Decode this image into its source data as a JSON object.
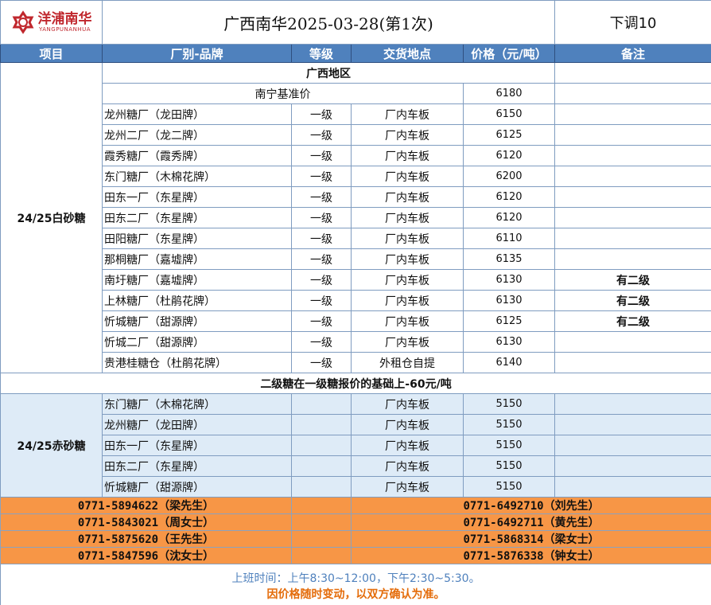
{
  "header": {
    "logo_text": "洋浦南华",
    "logo_sub": "YANGPUNANHUA",
    "title": "广西南华2025-03-28(第1次)",
    "adjustment": "下调10"
  },
  "columns": [
    "项目",
    "厂别-品牌",
    "等级",
    "交货地点",
    "价格（元/吨）",
    "备注"
  ],
  "white_sugar": {
    "label": "24/25白砂糖",
    "region": "广西地区",
    "base_label": "南宁基准价",
    "base_price": "6180",
    "rows": [
      {
        "factory": "龙州糖厂（龙田牌）",
        "grade": "一级",
        "location": "厂内车板",
        "price": "6150",
        "note": ""
      },
      {
        "factory": "龙州二厂（龙二牌）",
        "grade": "一级",
        "location": "厂内车板",
        "price": "6125",
        "note": ""
      },
      {
        "factory": "霞秀糖厂（霞秀牌）",
        "grade": "一级",
        "location": "厂内车板",
        "price": "6120",
        "note": ""
      },
      {
        "factory": "东门糖厂（木棉花牌）",
        "grade": "一级",
        "location": "厂内车板",
        "price": "6200",
        "note": ""
      },
      {
        "factory": "田东一厂（东星牌）",
        "grade": "一级",
        "location": "厂内车板",
        "price": "6120",
        "note": ""
      },
      {
        "factory": "田东二厂（东星牌）",
        "grade": "一级",
        "location": "厂内车板",
        "price": "6120",
        "note": ""
      },
      {
        "factory": "田阳糖厂（东星牌）",
        "grade": "一级",
        "location": "厂内车板",
        "price": "6110",
        "note": ""
      },
      {
        "factory": "那桐糖厂（嘉墟牌）",
        "grade": "一级",
        "location": "厂内车板",
        "price": "6135",
        "note": ""
      },
      {
        "factory": "南圩糖厂（嘉墟牌）",
        "grade": "一级",
        "location": "厂内车板",
        "price": "6130",
        "note": "有二级"
      },
      {
        "factory": "上林糖厂（杜鹃花牌）",
        "grade": "一级",
        "location": "厂内车板",
        "price": "6130",
        "note": "有二级"
      },
      {
        "factory": "忻城糖厂（甜源牌）",
        "grade": "一级",
        "location": "厂内车板",
        "price": "6125",
        "note": "有二级"
      },
      {
        "factory": "忻城二厂（甜源牌）",
        "grade": "一级",
        "location": "厂内车板",
        "price": "6130",
        "note": ""
      },
      {
        "factory": "贵港桂糖仓（杜鹃花牌）",
        "grade": "一级",
        "location": "外租仓自提",
        "price": "6140",
        "note": ""
      }
    ]
  },
  "second_grade_note": "二级糖在一级糖报价的基础上-60元/吨",
  "brown_sugar": {
    "label": "24/25赤砂糖",
    "rows": [
      {
        "factory": "东门糖厂（木棉花牌）",
        "grade": "",
        "location": "厂内车板",
        "price": "5150",
        "note": ""
      },
      {
        "factory": "龙州糖厂（龙田牌）",
        "grade": "",
        "location": "厂内车板",
        "price": "5150",
        "note": ""
      },
      {
        "factory": "田东一厂（东星牌）",
        "grade": "",
        "location": "厂内车板",
        "price": "5150",
        "note": ""
      },
      {
        "factory": "田东二厂（东星牌）",
        "grade": "",
        "location": "厂内车板",
        "price": "5150",
        "note": ""
      },
      {
        "factory": "忻城糖厂（甜源牌）",
        "grade": "",
        "location": "厂内车板",
        "price": "5150",
        "note": ""
      }
    ]
  },
  "contacts": [
    [
      "0771-5894622（梁先生）",
      "0771-6492710（刘先生）"
    ],
    [
      "0771-5843021（周女士）",
      "0771-6492711（黄先生）"
    ],
    [
      "0771-5875620（王先生）",
      "0771-5868314（梁女士）"
    ],
    [
      "0771-5847596（沈女士）",
      "0771-5876338（钟女士）"
    ]
  ],
  "footer": {
    "hours": "上班时间：上午8:30~12:00，下午2:30~5:30。",
    "disclaimer": "因价格随时变动，以双方确认为准。"
  },
  "colors": {
    "header_blue": "#4f81bd",
    "brown_bg": "#deebf7",
    "contact_orange": "#f79646",
    "logo_red": "#c0272d"
  }
}
